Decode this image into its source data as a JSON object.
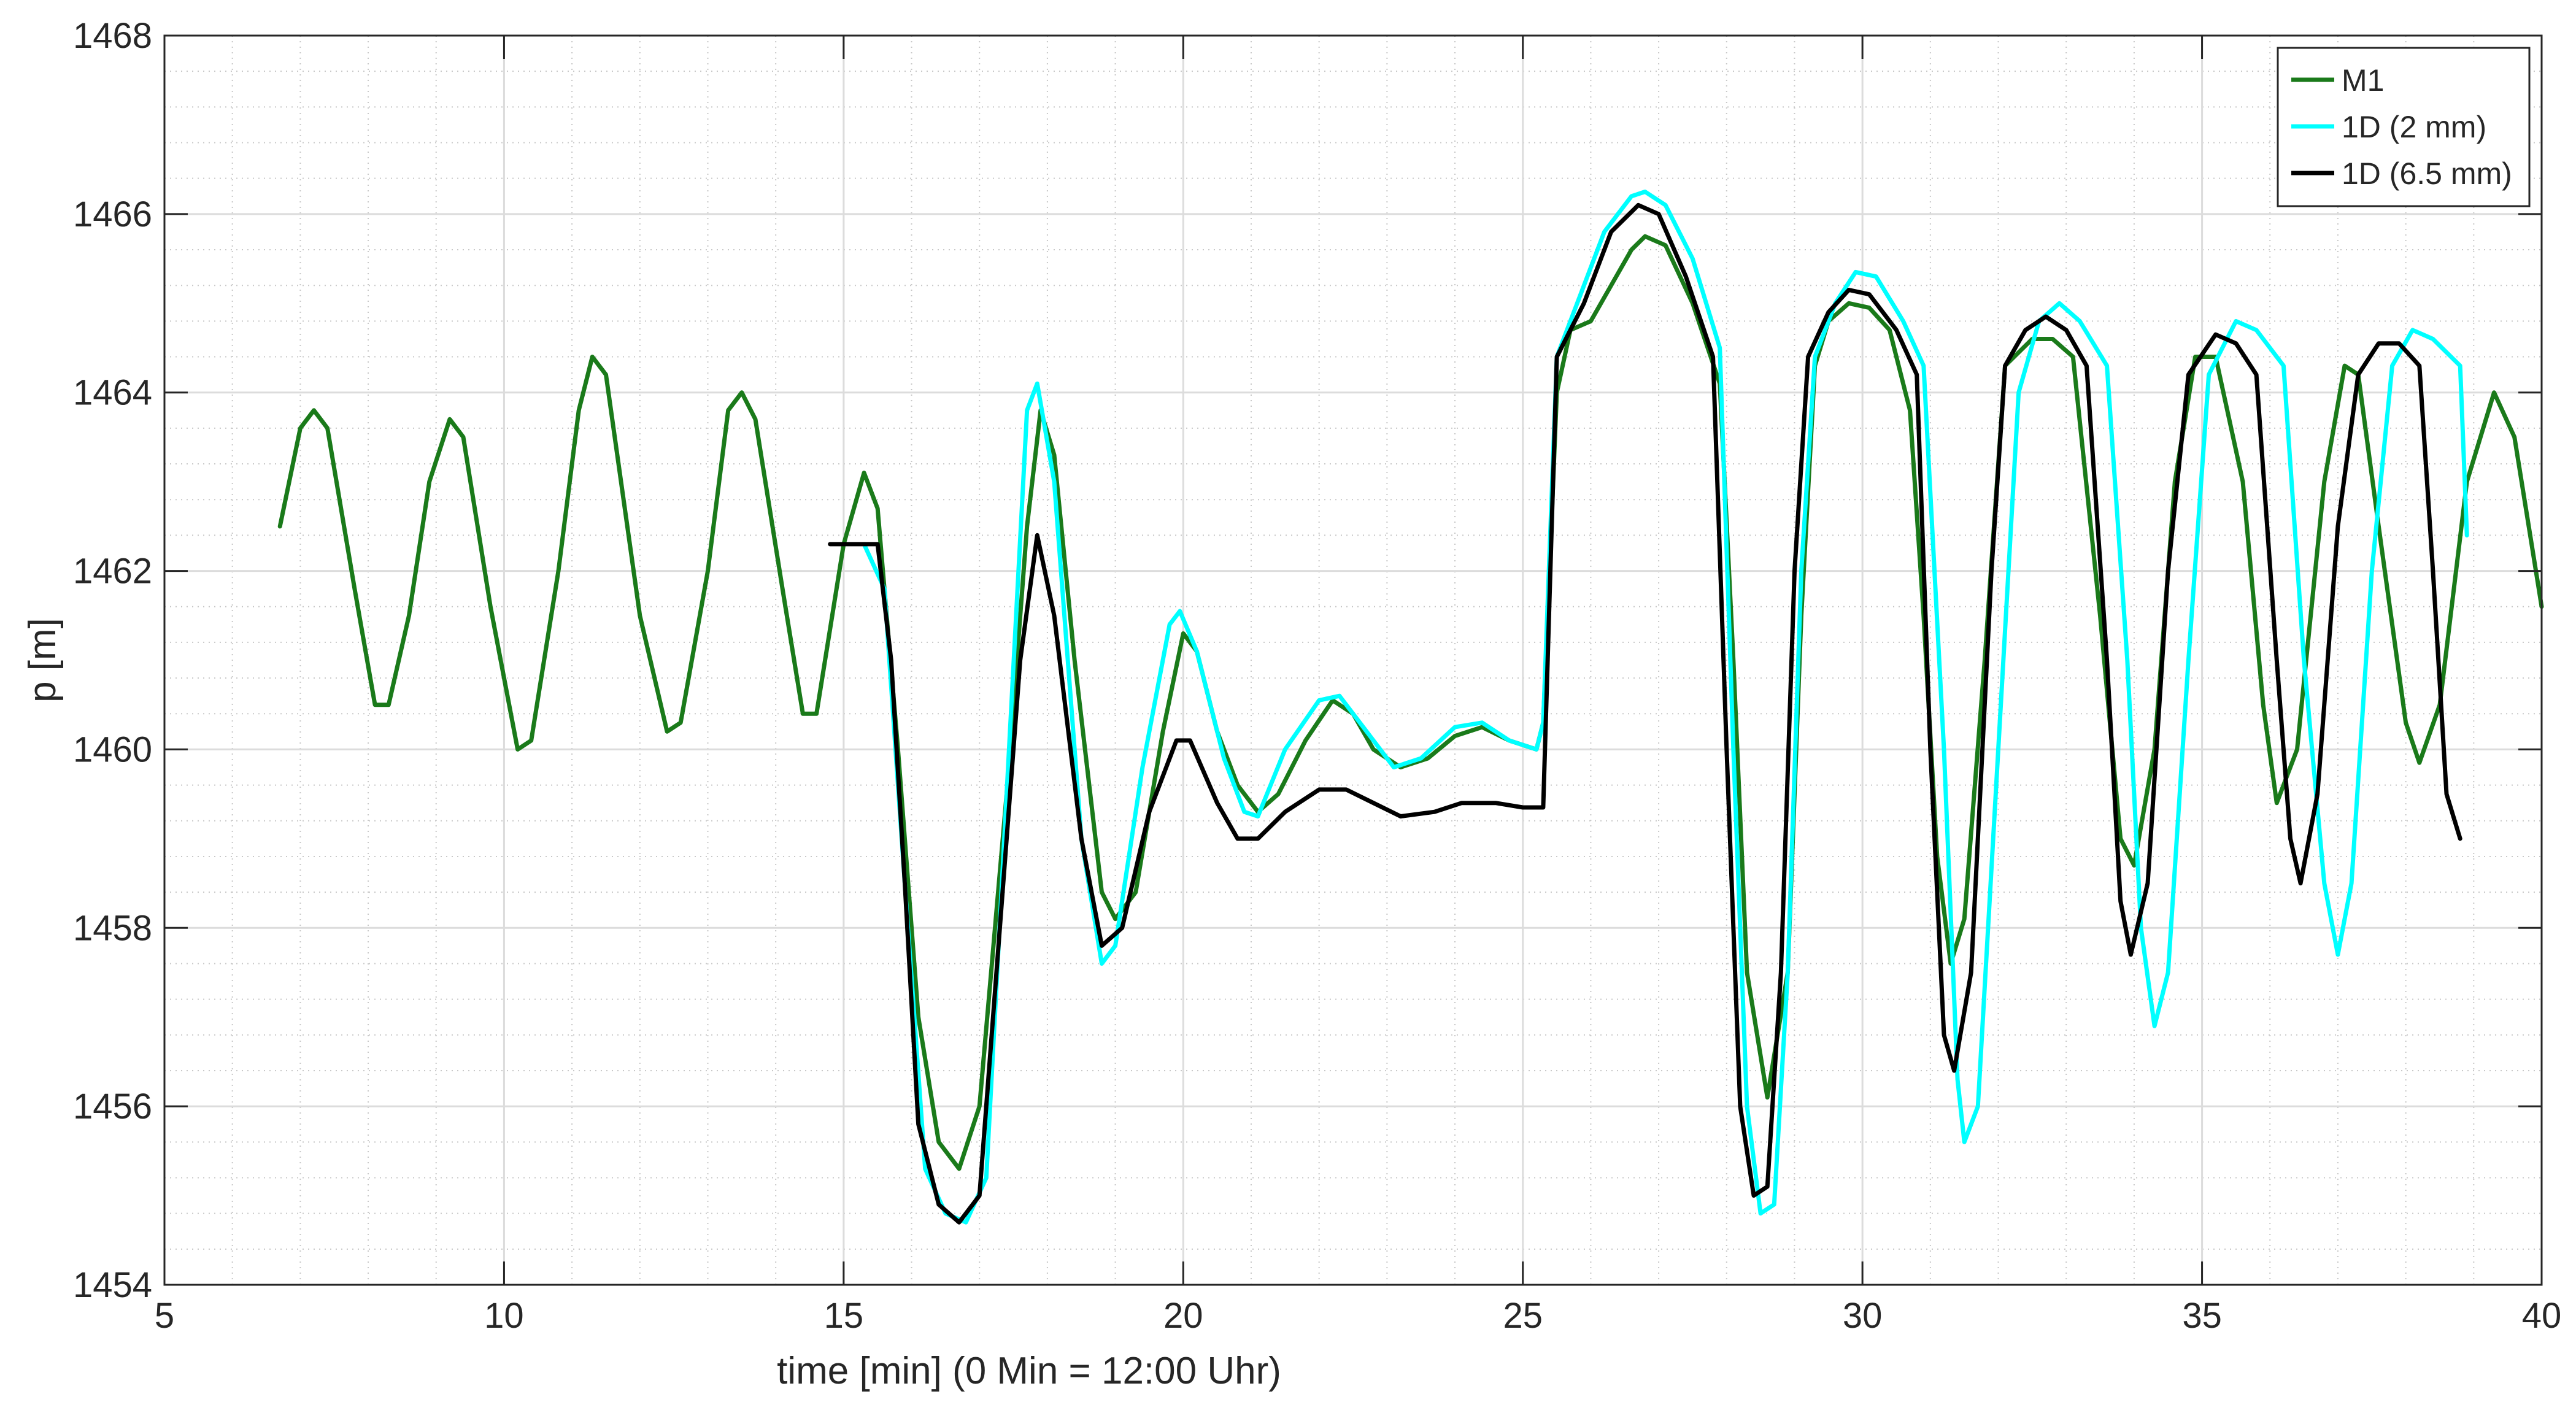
{
  "chart_data": {
    "type": "line",
    "title": "",
    "xlabel": "time [min] (0 Min = 12:00 Uhr)",
    "ylabel": "p [m]",
    "xlim": [
      5,
      40
    ],
    "ylim": [
      1454,
      1468
    ],
    "xticks": [
      5,
      10,
      15,
      20,
      25,
      30,
      35,
      40
    ],
    "yticks": [
      1454,
      1456,
      1458,
      1460,
      1462,
      1464,
      1466,
      1468
    ],
    "grid": true,
    "minor_grid": true,
    "legend_position": "top-right",
    "series": [
      {
        "name": "M1",
        "color": "#1a7a1a",
        "points": [
          [
            6.7,
            1462.5
          ],
          [
            7.0,
            1463.6
          ],
          [
            7.2,
            1463.8
          ],
          [
            7.4,
            1463.6
          ],
          [
            7.8,
            1461.8
          ],
          [
            8.1,
            1460.5
          ],
          [
            8.3,
            1460.5
          ],
          [
            8.6,
            1461.5
          ],
          [
            8.9,
            1463.0
          ],
          [
            9.2,
            1463.7
          ],
          [
            9.4,
            1463.5
          ],
          [
            9.8,
            1461.6
          ],
          [
            10.2,
            1460.0
          ],
          [
            10.4,
            1460.1
          ],
          [
            10.8,
            1462.0
          ],
          [
            11.1,
            1463.8
          ],
          [
            11.3,
            1464.4
          ],
          [
            11.5,
            1464.2
          ],
          [
            12.0,
            1461.5
          ],
          [
            12.4,
            1460.2
          ],
          [
            12.6,
            1460.3
          ],
          [
            13.0,
            1462.0
          ],
          [
            13.3,
            1463.8
          ],
          [
            13.5,
            1464.0
          ],
          [
            13.7,
            1463.7
          ],
          [
            14.1,
            1461.8
          ],
          [
            14.4,
            1460.4
          ],
          [
            14.6,
            1460.4
          ],
          [
            15.0,
            1462.3
          ],
          [
            15.3,
            1463.1
          ],
          [
            15.5,
            1462.7
          ],
          [
            15.8,
            1460.0
          ],
          [
            16.1,
            1457.0
          ],
          [
            16.4,
            1455.6
          ],
          [
            16.7,
            1455.3
          ],
          [
            17.0,
            1456.0
          ],
          [
            17.4,
            1459.5
          ],
          [
            17.7,
            1462.5
          ],
          [
            17.9,
            1463.8
          ],
          [
            18.1,
            1463.3
          ],
          [
            18.4,
            1461.0
          ],
          [
            18.8,
            1458.4
          ],
          [
            19.0,
            1458.1
          ],
          [
            19.3,
            1458.4
          ],
          [
            19.7,
            1460.2
          ],
          [
            20.0,
            1461.3
          ],
          [
            20.2,
            1461.1
          ],
          [
            20.5,
            1460.2
          ],
          [
            20.8,
            1459.6
          ],
          [
            21.1,
            1459.3
          ],
          [
            21.4,
            1459.5
          ],
          [
            21.8,
            1460.1
          ],
          [
            22.2,
            1460.55
          ],
          [
            22.5,
            1460.4
          ],
          [
            22.8,
            1460.0
          ],
          [
            23.2,
            1459.8
          ],
          [
            23.6,
            1459.9
          ],
          [
            24.0,
            1460.15
          ],
          [
            24.4,
            1460.25
          ],
          [
            24.8,
            1460.1
          ],
          [
            25.2,
            1460.0
          ],
          [
            25.3,
            1460.3
          ],
          [
            25.5,
            1464.0
          ],
          [
            25.7,
            1464.7
          ],
          [
            26.0,
            1464.8
          ],
          [
            26.3,
            1465.2
          ],
          [
            26.6,
            1465.6
          ],
          [
            26.8,
            1465.75
          ],
          [
            27.1,
            1465.65
          ],
          [
            27.5,
            1465.0
          ],
          [
            27.9,
            1464.1
          ],
          [
            28.1,
            1461.0
          ],
          [
            28.3,
            1457.5
          ],
          [
            28.6,
            1456.1
          ],
          [
            28.9,
            1457.5
          ],
          [
            29.1,
            1461.5
          ],
          [
            29.3,
            1464.3
          ],
          [
            29.5,
            1464.8
          ],
          [
            29.8,
            1465.0
          ],
          [
            30.1,
            1464.95
          ],
          [
            30.4,
            1464.7
          ],
          [
            30.7,
            1463.8
          ],
          [
            30.9,
            1461.5
          ],
          [
            31.1,
            1458.8
          ],
          [
            31.3,
            1457.6
          ],
          [
            31.5,
            1458.1
          ],
          [
            31.8,
            1461.0
          ],
          [
            32.1,
            1464.3
          ],
          [
            32.5,
            1464.6
          ],
          [
            32.8,
            1464.6
          ],
          [
            33.1,
            1464.4
          ],
          [
            33.5,
            1461.5
          ],
          [
            33.8,
            1459.0
          ],
          [
            34.0,
            1458.7
          ],
          [
            34.3,
            1460.0
          ],
          [
            34.6,
            1463.0
          ],
          [
            34.9,
            1464.4
          ],
          [
            35.2,
            1464.4
          ],
          [
            35.6,
            1463.0
          ],
          [
            35.9,
            1460.5
          ],
          [
            36.1,
            1459.4
          ],
          [
            36.4,
            1460.0
          ],
          [
            36.8,
            1463.0
          ],
          [
            37.1,
            1464.3
          ],
          [
            37.3,
            1464.2
          ],
          [
            37.6,
            1462.5
          ],
          [
            38.0,
            1460.3
          ],
          [
            38.2,
            1459.85
          ],
          [
            38.5,
            1460.5
          ],
          [
            38.9,
            1463.0
          ],
          [
            39.3,
            1464.0
          ],
          [
            39.6,
            1463.5
          ],
          [
            40.0,
            1461.6
          ]
        ]
      },
      {
        "name": "1D (2 mm)",
        "color": "#00ffff",
        "points": [
          [
            15.3,
            1462.3
          ],
          [
            15.6,
            1461.8
          ],
          [
            15.9,
            1458.5
          ],
          [
            16.2,
            1455.3
          ],
          [
            16.5,
            1454.8
          ],
          [
            16.8,
            1454.7
          ],
          [
            17.1,
            1455.2
          ],
          [
            17.4,
            1459.5
          ],
          [
            17.7,
            1463.8
          ],
          [
            17.85,
            1464.1
          ],
          [
            18.1,
            1463.0
          ],
          [
            18.5,
            1459.0
          ],
          [
            18.8,
            1457.6
          ],
          [
            19.0,
            1457.8
          ],
          [
            19.4,
            1459.8
          ],
          [
            19.8,
            1461.4
          ],
          [
            19.95,
            1461.55
          ],
          [
            20.2,
            1461.1
          ],
          [
            20.6,
            1459.9
          ],
          [
            20.9,
            1459.3
          ],
          [
            21.1,
            1459.25
          ],
          [
            21.5,
            1460.0
          ],
          [
            22.0,
            1460.55
          ],
          [
            22.3,
            1460.6
          ],
          [
            22.7,
            1460.2
          ],
          [
            23.1,
            1459.8
          ],
          [
            23.5,
            1459.9
          ],
          [
            24.0,
            1460.25
          ],
          [
            24.4,
            1460.3
          ],
          [
            24.8,
            1460.1
          ],
          [
            25.2,
            1460.0
          ],
          [
            25.3,
            1460.3
          ],
          [
            25.5,
            1464.4
          ],
          [
            25.8,
            1465.0
          ],
          [
            26.2,
            1465.8
          ],
          [
            26.6,
            1466.2
          ],
          [
            26.8,
            1466.25
          ],
          [
            27.1,
            1466.1
          ],
          [
            27.5,
            1465.5
          ],
          [
            27.9,
            1464.5
          ],
          [
            28.1,
            1460.0
          ],
          [
            28.3,
            1456.0
          ],
          [
            28.5,
            1454.8
          ],
          [
            28.7,
            1454.9
          ],
          [
            28.9,
            1457.5
          ],
          [
            29.1,
            1462.0
          ],
          [
            29.3,
            1464.4
          ],
          [
            29.6,
            1465.0
          ],
          [
            29.9,
            1465.35
          ],
          [
            30.2,
            1465.3
          ],
          [
            30.6,
            1464.8
          ],
          [
            30.9,
            1464.3
          ],
          [
            31.2,
            1460.0
          ],
          [
            31.4,
            1456.3
          ],
          [
            31.5,
            1455.6
          ],
          [
            31.7,
            1456.0
          ],
          [
            32.0,
            1460.0
          ],
          [
            32.3,
            1464.0
          ],
          [
            32.6,
            1464.8
          ],
          [
            32.9,
            1465.0
          ],
          [
            33.2,
            1464.8
          ],
          [
            33.6,
            1464.3
          ],
          [
            33.9,
            1461.0
          ],
          [
            34.1,
            1458.0
          ],
          [
            34.3,
            1456.9
          ],
          [
            34.5,
            1457.5
          ],
          [
            34.8,
            1461.0
          ],
          [
            35.1,
            1464.2
          ],
          [
            35.5,
            1464.8
          ],
          [
            35.8,
            1464.7
          ],
          [
            36.2,
            1464.3
          ],
          [
            36.5,
            1461.0
          ],
          [
            36.8,
            1458.5
          ],
          [
            37.0,
            1457.7
          ],
          [
            37.2,
            1458.5
          ],
          [
            37.5,
            1462.0
          ],
          [
            37.8,
            1464.3
          ],
          [
            38.1,
            1464.7
          ],
          [
            38.4,
            1464.6
          ],
          [
            38.8,
            1464.3
          ],
          [
            38.9,
            1462.4
          ]
        ]
      },
      {
        "name": "1D (6.5 mm)",
        "color": "#000000",
        "points": [
          [
            14.8,
            1462.3
          ],
          [
            15.5,
            1462.3
          ],
          [
            15.7,
            1461.0
          ],
          [
            15.9,
            1458.5
          ],
          [
            16.1,
            1455.8
          ],
          [
            16.4,
            1454.9
          ],
          [
            16.7,
            1454.7
          ],
          [
            17.0,
            1455.0
          ],
          [
            17.3,
            1458.0
          ],
          [
            17.6,
            1461.0
          ],
          [
            17.85,
            1462.4
          ],
          [
            18.1,
            1461.5
          ],
          [
            18.5,
            1459.0
          ],
          [
            18.8,
            1457.8
          ],
          [
            19.1,
            1458.0
          ],
          [
            19.5,
            1459.3
          ],
          [
            19.9,
            1460.1
          ],
          [
            20.1,
            1460.1
          ],
          [
            20.5,
            1459.4
          ],
          [
            20.8,
            1459.0
          ],
          [
            21.1,
            1459.0
          ],
          [
            21.5,
            1459.3
          ],
          [
            22.0,
            1459.55
          ],
          [
            22.4,
            1459.55
          ],
          [
            22.8,
            1459.4
          ],
          [
            23.2,
            1459.25
          ],
          [
            23.7,
            1459.3
          ],
          [
            24.1,
            1459.4
          ],
          [
            24.6,
            1459.4
          ],
          [
            25.0,
            1459.35
          ],
          [
            25.3,
            1459.35
          ],
          [
            25.5,
            1464.4
          ],
          [
            25.9,
            1465.0
          ],
          [
            26.3,
            1465.8
          ],
          [
            26.7,
            1466.1
          ],
          [
            27.0,
            1466.0
          ],
          [
            27.4,
            1465.3
          ],
          [
            27.8,
            1464.4
          ],
          [
            28.0,
            1460.0
          ],
          [
            28.2,
            1456.0
          ],
          [
            28.4,
            1455.0
          ],
          [
            28.6,
            1455.1
          ],
          [
            28.8,
            1457.5
          ],
          [
            29.0,
            1462.0
          ],
          [
            29.2,
            1464.4
          ],
          [
            29.5,
            1464.9
          ],
          [
            29.8,
            1465.15
          ],
          [
            30.1,
            1465.1
          ],
          [
            30.5,
            1464.7
          ],
          [
            30.8,
            1464.2
          ],
          [
            31.0,
            1460.0
          ],
          [
            31.2,
            1456.8
          ],
          [
            31.35,
            1456.4
          ],
          [
            31.6,
            1457.5
          ],
          [
            31.9,
            1462.0
          ],
          [
            32.1,
            1464.3
          ],
          [
            32.4,
            1464.7
          ],
          [
            32.7,
            1464.85
          ],
          [
            33.0,
            1464.7
          ],
          [
            33.3,
            1464.3
          ],
          [
            33.6,
            1461.0
          ],
          [
            33.8,
            1458.3
          ],
          [
            33.95,
            1457.7
          ],
          [
            34.2,
            1458.5
          ],
          [
            34.5,
            1462.0
          ],
          [
            34.8,
            1464.2
          ],
          [
            35.2,
            1464.65
          ],
          [
            35.5,
            1464.55
          ],
          [
            35.8,
            1464.2
          ],
          [
            36.1,
            1461.0
          ],
          [
            36.3,
            1459.0
          ],
          [
            36.45,
            1458.5
          ],
          [
            36.7,
            1459.5
          ],
          [
            37.0,
            1462.5
          ],
          [
            37.3,
            1464.2
          ],
          [
            37.6,
            1464.55
          ],
          [
            37.9,
            1464.55
          ],
          [
            38.2,
            1464.3
          ],
          [
            38.4,
            1462.0
          ],
          [
            38.6,
            1459.5
          ],
          [
            38.8,
            1459.0
          ]
        ]
      }
    ]
  }
}
